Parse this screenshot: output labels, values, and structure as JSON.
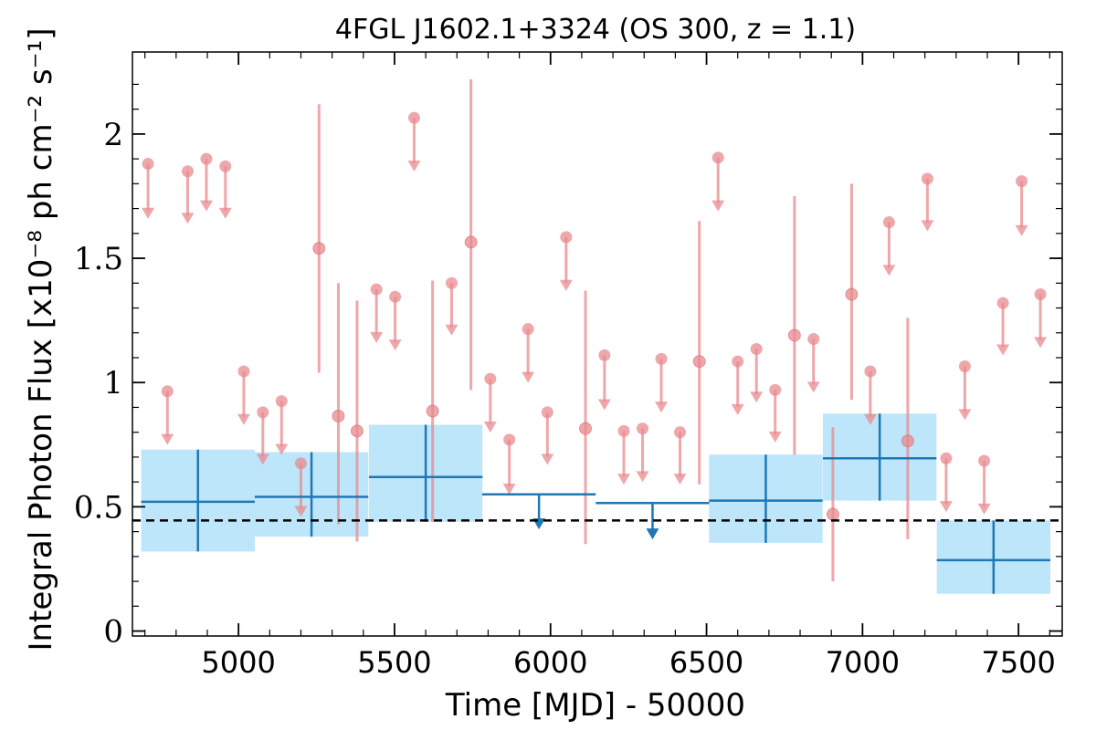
{
  "chart_data": {
    "type": "scatter",
    "title": "4FGL J1602.1+3324 (OS 300, z = 1.1)",
    "xlabel": "Time [MJD] - 50000",
    "ylabel": "Integral Photon Flux [x10⁻⁸ ph cm⁻² s⁻¹]",
    "xlim": [
      4660,
      7640
    ],
    "ylim": [
      -0.02,
      2.33
    ],
    "xticks": [
      5000,
      5500,
      6000,
      6500,
      7000,
      7500
    ],
    "xtick_labels": [
      "5000",
      "5500",
      "6000",
      "6500",
      "7000",
      "7500"
    ],
    "yticks": [
      0,
      0.5,
      1,
      1.5,
      2
    ],
    "ytick_labels": [
      "0",
      "0.5",
      "1",
      "1.5",
      "2"
    ],
    "grid": false,
    "reference_line": {
      "y": 0.445,
      "style": "dashed",
      "color": "#000000"
    },
    "colors": {
      "short_bins": "#e88a8d",
      "long_bins": "#1f77b4",
      "long_bins_fill": "#bde6fb",
      "reference": "#000000"
    },
    "series": [
      {
        "bins": "long",
        "detections": [
          {
            "x": 4870,
            "xerr": 182,
            "y": 0.52,
            "ylow": 0.32,
            "yhigh": 0.73
          },
          {
            "x": 5234,
            "xerr": 182,
            "y": 0.54,
            "ylow": 0.38,
            "yhigh": 0.72
          },
          {
            "x": 5600,
            "xerr": 182,
            "y": 0.62,
            "ylow": 0.44,
            "yhigh": 0.83
          },
          {
            "x": 6690,
            "xerr": 182,
            "y": 0.525,
            "ylow": 0.355,
            "yhigh": 0.71
          },
          {
            "x": 7055,
            "xerr": 182,
            "y": 0.695,
            "ylow": 0.525,
            "yhigh": 0.875
          },
          {
            "x": 7420,
            "xerr": 182,
            "y": 0.285,
            "ylow": 0.15,
            "yhigh": 0.445
          }
        ],
        "upper_limits": [
          {
            "x": 5963,
            "xerr": 182,
            "y": 0.55,
            "y_arrow": 0.42
          },
          {
            "x": 6327,
            "xerr": 182,
            "y": 0.515,
            "y_arrow": 0.38
          }
        ]
      },
      {
        "bins": "short",
        "detections": [
          {
            "x": 5258,
            "y": 1.54,
            "ylow": 1.04,
            "yhigh": 2.12
          },
          {
            "x": 5320,
            "y": 0.865,
            "ylow": 0.43,
            "yhigh": 1.4
          },
          {
            "x": 5380,
            "y": 0.805,
            "ylow": 0.36,
            "yhigh": 1.33
          },
          {
            "x": 5622,
            "y": 0.885,
            "ylow": 0.44,
            "yhigh": 1.41
          },
          {
            "x": 5745,
            "y": 1.565,
            "ylow": 0.97,
            "yhigh": 2.22
          },
          {
            "x": 6112,
            "y": 0.815,
            "ylow": 0.35,
            "yhigh": 1.37
          },
          {
            "x": 6477,
            "y": 1.085,
            "ylow": 0.59,
            "yhigh": 1.65
          },
          {
            "x": 6782,
            "y": 1.19,
            "ylow": 0.71,
            "yhigh": 1.75
          },
          {
            "x": 6905,
            "y": 0.47,
            "ylow": 0.2,
            "yhigh": 0.82
          },
          {
            "x": 6965,
            "y": 1.355,
            "ylow": 0.93,
            "yhigh": 1.8
          },
          {
            "x": 7145,
            "y": 0.765,
            "ylow": 0.37,
            "yhigh": 1.26
          }
        ],
        "upper_limits": [
          {
            "x": 4710,
            "y": 1.88,
            "y_arrow": 1.67
          },
          {
            "x": 4772,
            "y": 0.965,
            "y_arrow": 0.76
          },
          {
            "x": 4837,
            "y": 1.85,
            "y_arrow": 1.65
          },
          {
            "x": 4897,
            "y": 1.9,
            "y_arrow": 1.7
          },
          {
            "x": 4958,
            "y": 1.87,
            "y_arrow": 1.67
          },
          {
            "x": 5017,
            "y": 1.045,
            "y_arrow": 0.84
          },
          {
            "x": 5078,
            "y": 0.88,
            "y_arrow": 0.68
          },
          {
            "x": 5138,
            "y": 0.925,
            "y_arrow": 0.72
          },
          {
            "x": 5200,
            "y": 0.675,
            "y_arrow": 0.47
          },
          {
            "x": 5442,
            "y": 1.375,
            "y_arrow": 1.17
          },
          {
            "x": 5502,
            "y": 1.345,
            "y_arrow": 1.14
          },
          {
            "x": 5563,
            "y": 2.065,
            "y_arrow": 1.86
          },
          {
            "x": 5683,
            "y": 1.4,
            "y_arrow": 1.2
          },
          {
            "x": 5807,
            "y": 1.015,
            "y_arrow": 0.81
          },
          {
            "x": 5868,
            "y": 0.77,
            "y_arrow": 0.56
          },
          {
            "x": 5928,
            "y": 1.215,
            "y_arrow": 1.01
          },
          {
            "x": 5990,
            "y": 0.88,
            "y_arrow": 0.68
          },
          {
            "x": 6050,
            "y": 1.585,
            "y_arrow": 1.38
          },
          {
            "x": 6173,
            "y": 1.11,
            "y_arrow": 0.9
          },
          {
            "x": 6235,
            "y": 0.805,
            "y_arrow": 0.6
          },
          {
            "x": 6295,
            "y": 0.815,
            "y_arrow": 0.61
          },
          {
            "x": 6355,
            "y": 1.095,
            "y_arrow": 0.89
          },
          {
            "x": 6415,
            "y": 0.8,
            "y_arrow": 0.6
          },
          {
            "x": 6537,
            "y": 1.905,
            "y_arrow": 1.7
          },
          {
            "x": 6600,
            "y": 1.085,
            "y_arrow": 0.88
          },
          {
            "x": 6660,
            "y": 1.135,
            "y_arrow": 0.93
          },
          {
            "x": 6720,
            "y": 0.97,
            "y_arrow": 0.77
          },
          {
            "x": 6843,
            "y": 1.175,
            "y_arrow": 0.97
          },
          {
            "x": 7025,
            "y": 1.045,
            "y_arrow": 0.84
          },
          {
            "x": 7085,
            "y": 1.645,
            "y_arrow": 1.44
          },
          {
            "x": 7208,
            "y": 1.82,
            "y_arrow": 1.62
          },
          {
            "x": 7268,
            "y": 0.695,
            "y_arrow": 0.49
          },
          {
            "x": 7328,
            "y": 1.065,
            "y_arrow": 0.86
          },
          {
            "x": 7390,
            "y": 0.685,
            "y_arrow": 0.48
          },
          {
            "x": 7450,
            "y": 1.32,
            "y_arrow": 1.12
          },
          {
            "x": 7510,
            "y": 1.81,
            "y_arrow": 1.6
          },
          {
            "x": 7570,
            "y": 1.355,
            "y_arrow": 1.15
          }
        ]
      }
    ]
  }
}
